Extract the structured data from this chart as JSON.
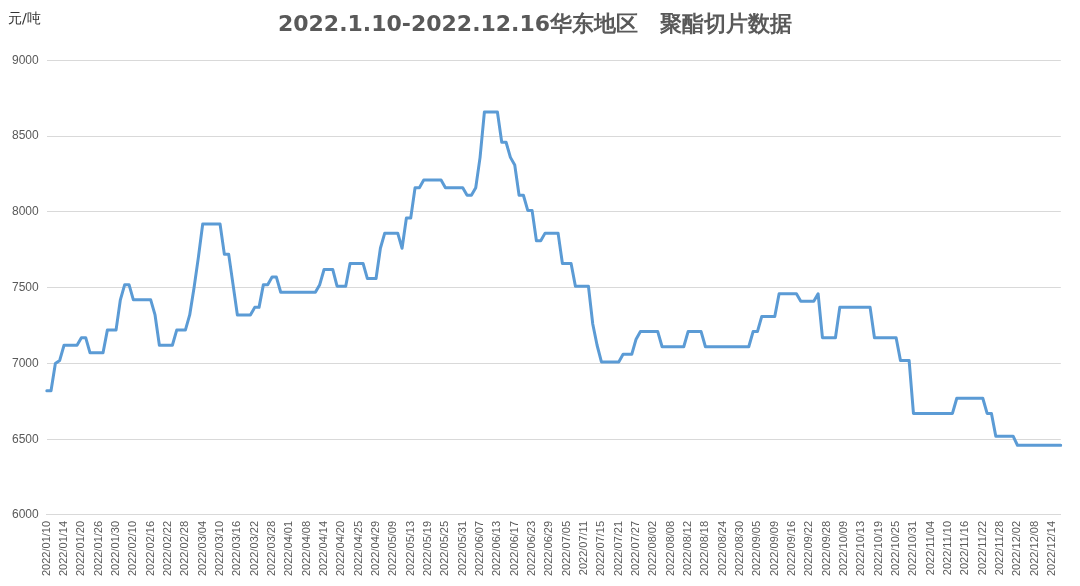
{
  "chart_data": {
    "type": "line",
    "title": "2022.1.10-2022.12.16华东地区　聚酯切片数据",
    "ylabel": "元/吨",
    "categories": [
      "2022/01/10",
      null,
      null,
      null,
      "2022/01/14",
      null,
      null,
      null,
      "2022/01/20",
      null,
      null,
      null,
      "2022/01/26",
      null,
      null,
      null,
      "2022/01/30",
      null,
      null,
      null,
      "2022/02/10",
      null,
      null,
      null,
      "2022/02/16",
      null,
      null,
      null,
      "2022/02/22",
      null,
      null,
      null,
      "2022/02/28",
      null,
      null,
      null,
      "2022/03/04",
      null,
      null,
      null,
      "2022/03/10",
      null,
      null,
      null,
      "2022/03/16",
      null,
      null,
      null,
      "2022/03/22",
      null,
      null,
      null,
      "2022/03/28",
      null,
      null,
      null,
      "2022/04/01",
      null,
      null,
      null,
      "2022/04/08",
      null,
      null,
      null,
      "2022/04/14",
      null,
      null,
      null,
      "2022/04/20",
      null,
      null,
      null,
      "2022/04/25",
      null,
      null,
      null,
      "2022/04/29",
      null,
      null,
      null,
      "2022/05/09",
      null,
      null,
      null,
      "2022/05/13",
      null,
      null,
      null,
      "2022/05/19",
      null,
      null,
      null,
      "2022/05/25",
      null,
      null,
      null,
      "2022/05/31",
      null,
      null,
      null,
      "2022/06/07",
      null,
      null,
      null,
      "2022/06/13",
      null,
      null,
      null,
      "2022/06/17",
      null,
      null,
      null,
      "2022/06/23",
      null,
      null,
      null,
      "2022/06/29",
      null,
      null,
      null,
      "2022/07/05",
      null,
      null,
      null,
      "2022/07/11",
      null,
      null,
      null,
      "2022/07/15",
      null,
      null,
      null,
      "2022/07/21",
      null,
      null,
      null,
      "2022/07/27",
      null,
      null,
      null,
      "2022/08/02",
      null,
      null,
      null,
      "2022/08/08",
      null,
      null,
      null,
      "2022/08/12",
      null,
      null,
      null,
      "2022/08/18",
      null,
      null,
      null,
      "2022/08/24",
      null,
      null,
      null,
      "2022/08/30",
      null,
      null,
      null,
      "2022/09/05",
      null,
      null,
      null,
      "2022/09/09",
      null,
      null,
      null,
      "2022/09/16",
      null,
      null,
      null,
      "2022/09/22",
      null,
      null,
      null,
      "2022/09/28",
      null,
      null,
      null,
      "2022/10/09",
      null,
      null,
      null,
      "2022/10/13",
      null,
      null,
      null,
      "2022/10/19",
      null,
      null,
      null,
      "2022/10/25",
      null,
      null,
      null,
      "2022/10/31",
      null,
      null,
      null,
      "2022/11/04",
      null,
      null,
      null,
      "2022/11/10",
      null,
      null,
      null,
      "2022/11/16",
      null,
      null,
      null,
      "2022/11/22",
      null,
      null,
      null,
      "2022/11/28",
      null,
      null,
      null,
      "2022/12/02",
      null,
      null,
      null,
      "2022/12/08",
      null,
      null,
      null,
      "2022/12/14",
      null,
      null
    ],
    "series": [
      {
        "color": "#5b9bd5",
        "values": [
          6820,
          6820,
          7000,
          7020,
          7120,
          7120,
          7120,
          7120,
          7170,
          7170,
          7070,
          7070,
          7070,
          7070,
          7220,
          7220,
          7220,
          7420,
          7520,
          7520,
          7420,
          7420,
          7420,
          7420,
          7420,
          7320,
          7120,
          7120,
          7120,
          7120,
          7220,
          7220,
          7220,
          7320,
          7500,
          7700,
          7920,
          7920,
          7920,
          7920,
          7920,
          7720,
          7720,
          7520,
          7320,
          7320,
          7320,
          7320,
          7370,
          7370,
          7520,
          7520,
          7570,
          7570,
          7470,
          7470,
          7470,
          7470,
          7470,
          7470,
          7470,
          7470,
          7470,
          7520,
          7620,
          7620,
          7620,
          7510,
          7510,
          7510,
          7660,
          7660,
          7660,
          7660,
          7560,
          7560,
          7560,
          7760,
          7860,
          7860,
          7860,
          7860,
          7760,
          7960,
          7960,
          8160,
          8160,
          8210,
          8210,
          8210,
          8210,
          8210,
          8160,
          8160,
          8160,
          8160,
          8160,
          8110,
          8110,
          8160,
          8360,
          8660,
          8660,
          8660,
          8660,
          8460,
          8460,
          8360,
          8310,
          8110,
          8110,
          8010,
          8010,
          7810,
          7810,
          7860,
          7860,
          7860,
          7860,
          7660,
          7660,
          7660,
          7510,
          7510,
          7510,
          7510,
          7260,
          7120,
          7010,
          7010,
          7010,
          7010,
          7010,
          7060,
          7060,
          7060,
          7160,
          7210,
          7210,
          7210,
          7210,
          7210,
          7110,
          7110,
          7110,
          7110,
          7110,
          7110,
          7210,
          7210,
          7210,
          7210,
          7110,
          7110,
          7110,
          7110,
          7110,
          7110,
          7110,
          7110,
          7110,
          7110,
          7110,
          7210,
          7210,
          7310,
          7310,
          7310,
          7310,
          7460,
          7460,
          7460,
          7460,
          7460,
          7410,
          7410,
          7410,
          7410,
          7460,
          7170,
          7170,
          7170,
          7170,
          7370,
          7370,
          7370,
          7370,
          7370,
          7370,
          7370,
          7370,
          7170,
          7170,
          7170,
          7170,
          7170,
          7170,
          7020,
          7020,
          7020,
          6670,
          6670,
          6670,
          6670,
          6670,
          6670,
          6670,
          6670,
          6670,
          6670,
          6770,
          6770,
          6770,
          6770,
          6770,
          6770,
          6770,
          6670,
          6670,
          6520,
          6520,
          6520,
          6520,
          6520,
          6460,
          6460,
          6460,
          6460,
          6460,
          6460,
          6460,
          6460,
          6460,
          6460,
          6460
        ]
      }
    ],
    "ylim": [
      6000,
      9000
    ],
    "yticks": [
      6000,
      6500,
      7000,
      7500,
      8000,
      8500,
      9000
    ],
    "grid": "y",
    "marker": "none"
  }
}
